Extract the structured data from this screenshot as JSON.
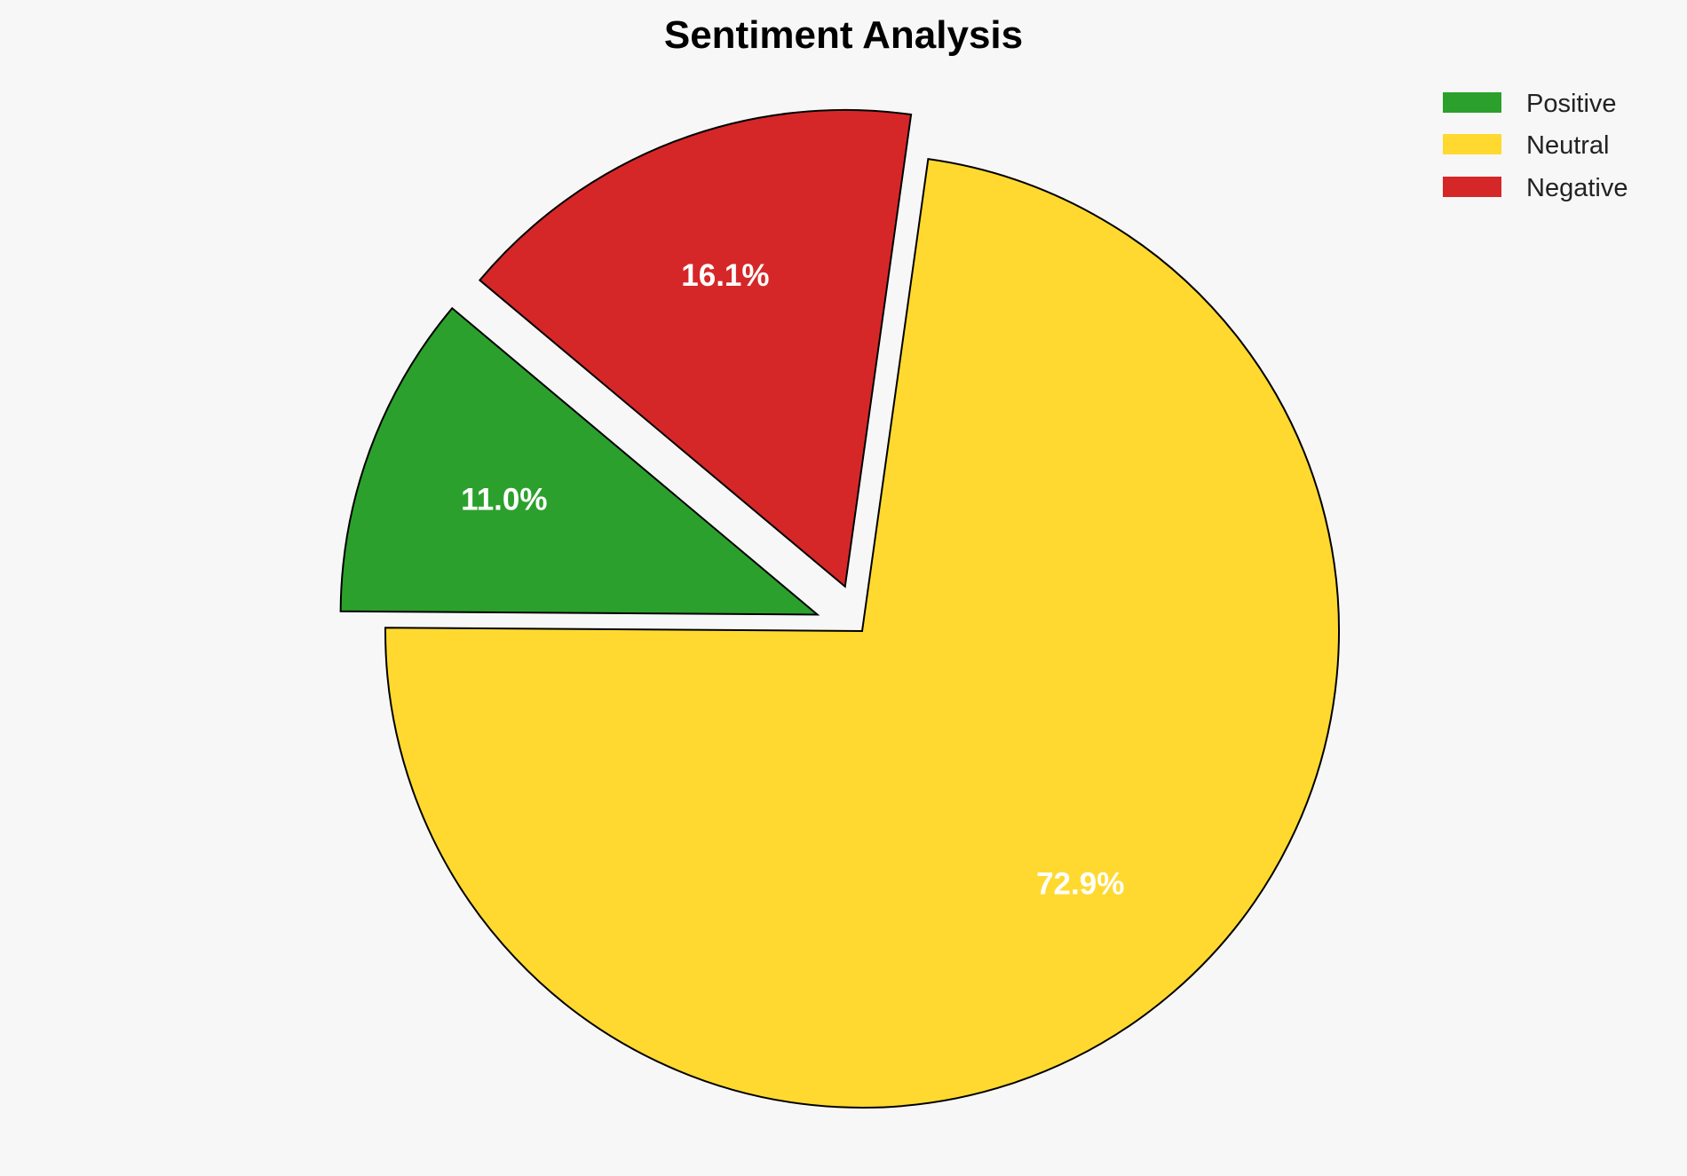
{
  "chart_data": {
    "type": "pie",
    "title": "Sentiment Analysis",
    "categories": [
      "Positive",
      "Neutral",
      "Negative"
    ],
    "values": [
      11.0,
      72.9,
      16.1
    ],
    "labels": [
      "11.0%",
      "72.9%",
      "16.1%"
    ],
    "colors": [
      "#2ca02c",
      "#ffd92f",
      "#d62728"
    ],
    "explode": [
      0.1,
      0,
      0.1
    ],
    "start_angle": 140,
    "legend_position": "top-right",
    "edge_color": "#000000",
    "background": "#f7f7f7"
  }
}
